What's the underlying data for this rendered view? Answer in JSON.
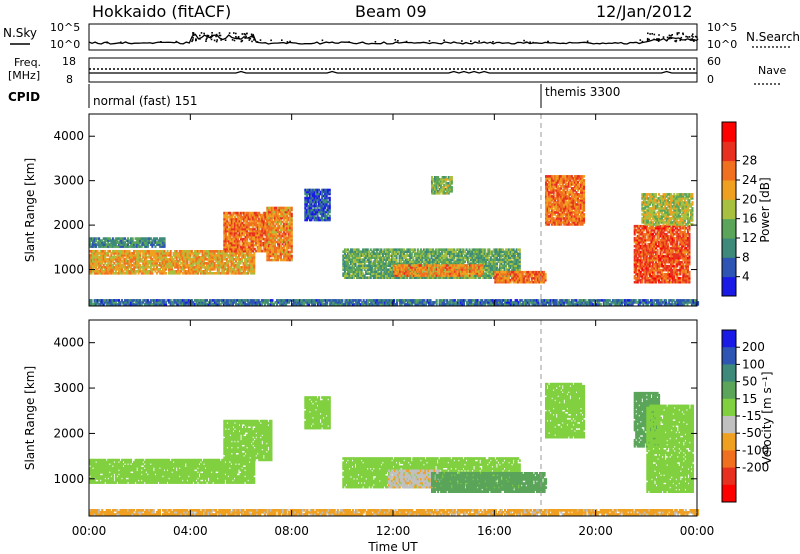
{
  "header": {
    "title": "Hokkaido (fitACF)",
    "beam": "Beam 09",
    "date": "12/Jan/2012"
  },
  "top_panels": {
    "nsky": {
      "label": "N.Sky",
      "ticks": [
        "10^5",
        "10^0"
      ]
    },
    "nsearch": {
      "label": "N.Search",
      "ticks": [
        "10^5",
        "10^0"
      ]
    },
    "freq": {
      "label_line1": "Freq.",
      "label_line2": "[MHz]",
      "ticks": [
        "18",
        "8"
      ]
    },
    "nave": {
      "label": "Nave",
      "ticks": [
        "60",
        "0"
      ]
    },
    "cpid": {
      "label": "CPID",
      "segments": [
        {
          "start_hour": 0,
          "text": "normal (fast) 151"
        },
        {
          "start_hour": 18,
          "text": "themis 3300"
        }
      ]
    }
  },
  "x_axis": {
    "label": "Time UT",
    "ticks": [
      "00:00",
      "04:00",
      "08:00",
      "12:00",
      "16:00",
      "20:00",
      "00:00"
    ]
  },
  "chart_data": [
    {
      "type": "heatmap",
      "quantity": "power",
      "xlabel": "Time UT",
      "ylabel": "Slant Range [km]",
      "x_unit": "hours UT",
      "xlim": [
        0,
        24
      ],
      "ylim": [
        180,
        4500
      ],
      "yticks": [
        1000,
        2000,
        3000,
        4000
      ],
      "colorbar": {
        "label": "Power [dB]",
        "ticks": [
          "4",
          "8",
          "12",
          "16",
          "20",
          "24",
          "28"
        ],
        "levels": [
          0,
          4,
          8,
          12,
          16,
          20,
          24,
          28,
          32
        ],
        "colors": [
          "#1a1ae6",
          "#2e55b3",
          "#3d8a7a",
          "#5aa55a",
          "#a8c040",
          "#f0a020",
          "#f07020",
          "#e83020",
          "#ff0000"
        ]
      },
      "regions": [
        {
          "t0": 0.0,
          "t1": 6.5,
          "r0": 900,
          "r1": 1400,
          "value": 22
        },
        {
          "t0": 0.0,
          "t1": 3.0,
          "r0": 1500,
          "r1": 1700,
          "value": 10
        },
        {
          "t0": 5.3,
          "t1": 7.2,
          "r0": 1400,
          "r1": 2300,
          "value": 26
        },
        {
          "t0": 7.0,
          "t1": 8.0,
          "r0": 1200,
          "r1": 2400,
          "value": 24
        },
        {
          "t0": 8.5,
          "t1": 9.5,
          "r0": 2100,
          "r1": 2800,
          "value": 6
        },
        {
          "t0": 10.0,
          "t1": 17.0,
          "r0": 800,
          "r1": 1450,
          "value": 14
        },
        {
          "t0": 12.0,
          "t1": 15.5,
          "r0": 850,
          "r1": 1100,
          "value": 24
        },
        {
          "t0": 16.0,
          "t1": 18.0,
          "r0": 700,
          "r1": 950,
          "value": 26
        },
        {
          "t0": 18.0,
          "t1": 19.5,
          "r0": 2000,
          "r1": 3100,
          "value": 26
        },
        {
          "t0": 13.5,
          "t1": 14.3,
          "r0": 2700,
          "r1": 3100,
          "value": 16
        },
        {
          "t0": 21.5,
          "t1": 23.7,
          "r0": 700,
          "r1": 2000,
          "value": 28
        },
        {
          "t0": 21.8,
          "t1": 23.8,
          "r0": 2000,
          "r1": 2700,
          "value": 18
        },
        {
          "t0": 0.0,
          "t1": 24.0,
          "r0": 200,
          "r1": 330,
          "value": 8
        }
      ]
    },
    {
      "type": "heatmap",
      "quantity": "velocity",
      "xlabel": "Time UT",
      "ylabel": "Slant Range [km]",
      "x_unit": "hours UT",
      "xlim": [
        0,
        24
      ],
      "ylim": [
        180,
        4500
      ],
      "yticks": [
        1000,
        2000,
        3000,
        4000
      ],
      "colorbar": {
        "label": "Velocity [m s⁻¹]",
        "ticks": [
          "200",
          "100",
          "50",
          "15",
          "-15",
          "-50",
          "-100",
          "-200"
        ],
        "levels": [
          250,
          200,
          100,
          50,
          15,
          -15,
          -50,
          -100,
          -200,
          -250
        ],
        "colors": [
          "#1a1ae6",
          "#2e55b3",
          "#3d8a7a",
          "#5aa55a",
          "#80d040",
          "#c0c0c0",
          "#f0a020",
          "#f07020",
          "#e83020",
          "#ff0000"
        ]
      },
      "regions": [
        {
          "t0": 0.0,
          "t1": 6.5,
          "r0": 900,
          "r1": 1400,
          "value": 0
        },
        {
          "t0": 5.3,
          "t1": 7.2,
          "r0": 1400,
          "r1": 2300,
          "value": 0
        },
        {
          "t0": 8.5,
          "t1": 9.5,
          "r0": 2100,
          "r1": 2800,
          "value": 0
        },
        {
          "t0": 10.0,
          "t1": 17.0,
          "r0": 800,
          "r1": 1450,
          "value": 0
        },
        {
          "t0": 11.8,
          "t1": 13.8,
          "r0": 800,
          "r1": 1200,
          "value": -40
        },
        {
          "t0": 13.5,
          "t1": 18.0,
          "r0": 700,
          "r1": 1150,
          "value": 30
        },
        {
          "t0": 18.0,
          "t1": 19.5,
          "r0": 1900,
          "r1": 3100,
          "value": 0
        },
        {
          "t0": 21.5,
          "t1": 22.5,
          "r0": 1700,
          "r1": 2900,
          "value": 30
        },
        {
          "t0": 22.0,
          "t1": 23.8,
          "r0": 700,
          "r1": 2600,
          "value": 0
        },
        {
          "t0": 0.0,
          "t1": 24.0,
          "r0": 200,
          "r1": 330,
          "value": -60
        }
      ]
    }
  ]
}
